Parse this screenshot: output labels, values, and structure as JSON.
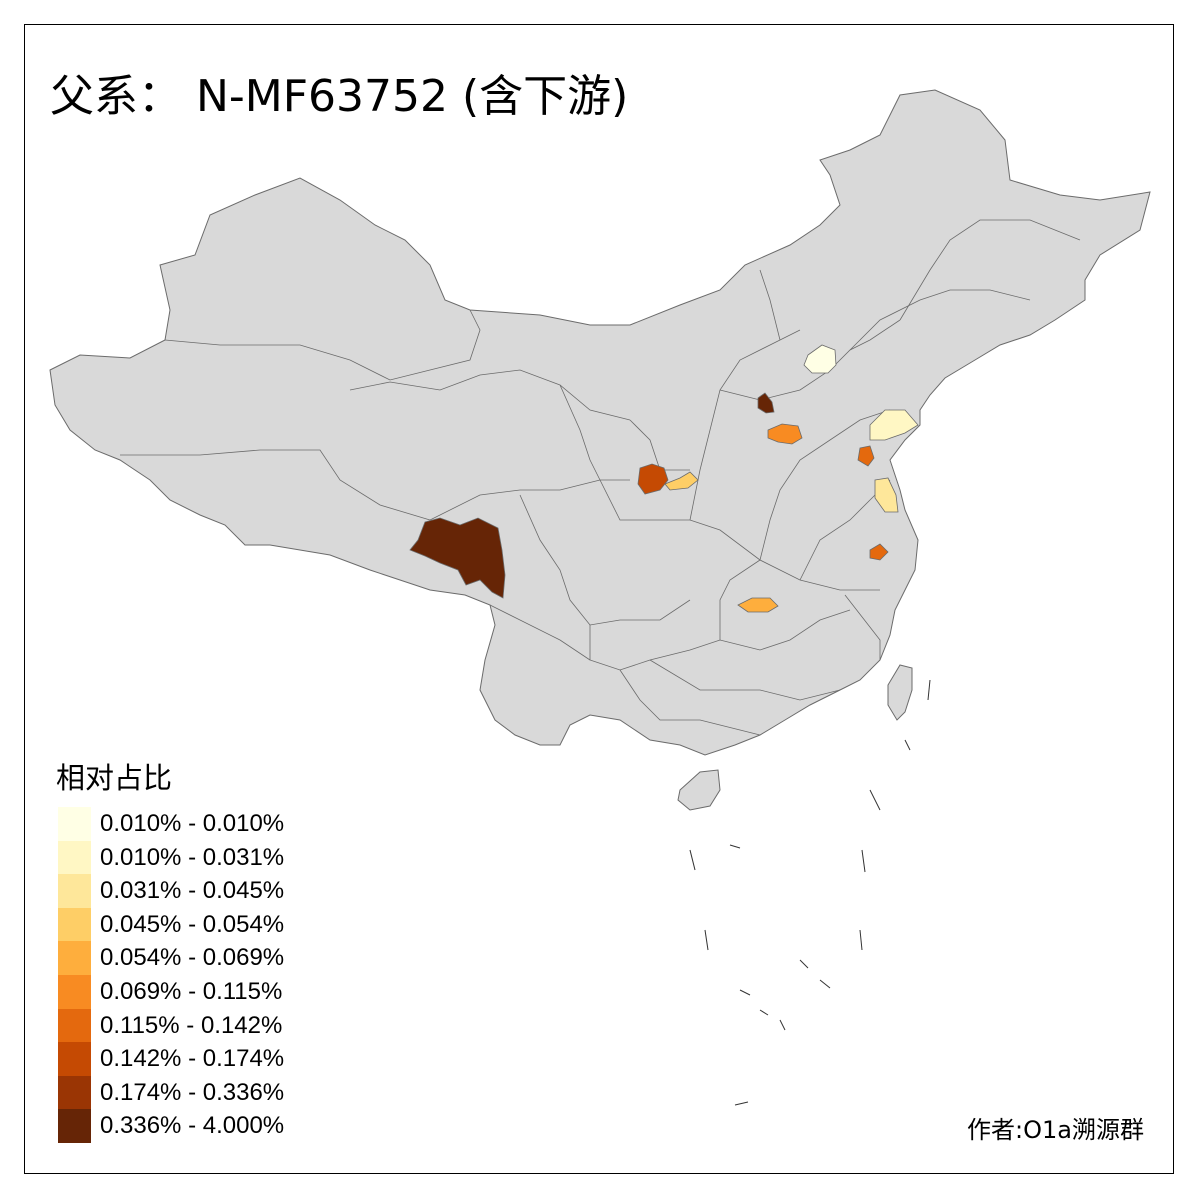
{
  "title": "父系： N-MF63752 (含下游)",
  "legend": {
    "title": "相对占比",
    "items": [
      {
        "label": "0.010% - 0.010%",
        "color": "#ffffe5"
      },
      {
        "label": "0.010% - 0.031%",
        "color": "#fff7c4"
      },
      {
        "label": "0.031% - 0.045%",
        "color": "#fee79a"
      },
      {
        "label": "0.045% - 0.054%",
        "color": "#fece66"
      },
      {
        "label": "0.054% - 0.069%",
        "color": "#feae3d"
      },
      {
        "label": "0.069% - 0.115%",
        "color": "#f88b22"
      },
      {
        "label": "0.115% - 0.142%",
        "color": "#e4690e"
      },
      {
        "label": "0.142% - 0.174%",
        "color": "#c54a03"
      },
      {
        "label": "0.174% - 0.336%",
        "color": "#9a3504"
      },
      {
        "label": "0.336% - 4.000%",
        "color": "#662506"
      }
    ]
  },
  "colors": {
    "base_fill": "#d9d9d9",
    "border": "#6b6b6b"
  },
  "credit": "作者:O1a溯源群"
}
